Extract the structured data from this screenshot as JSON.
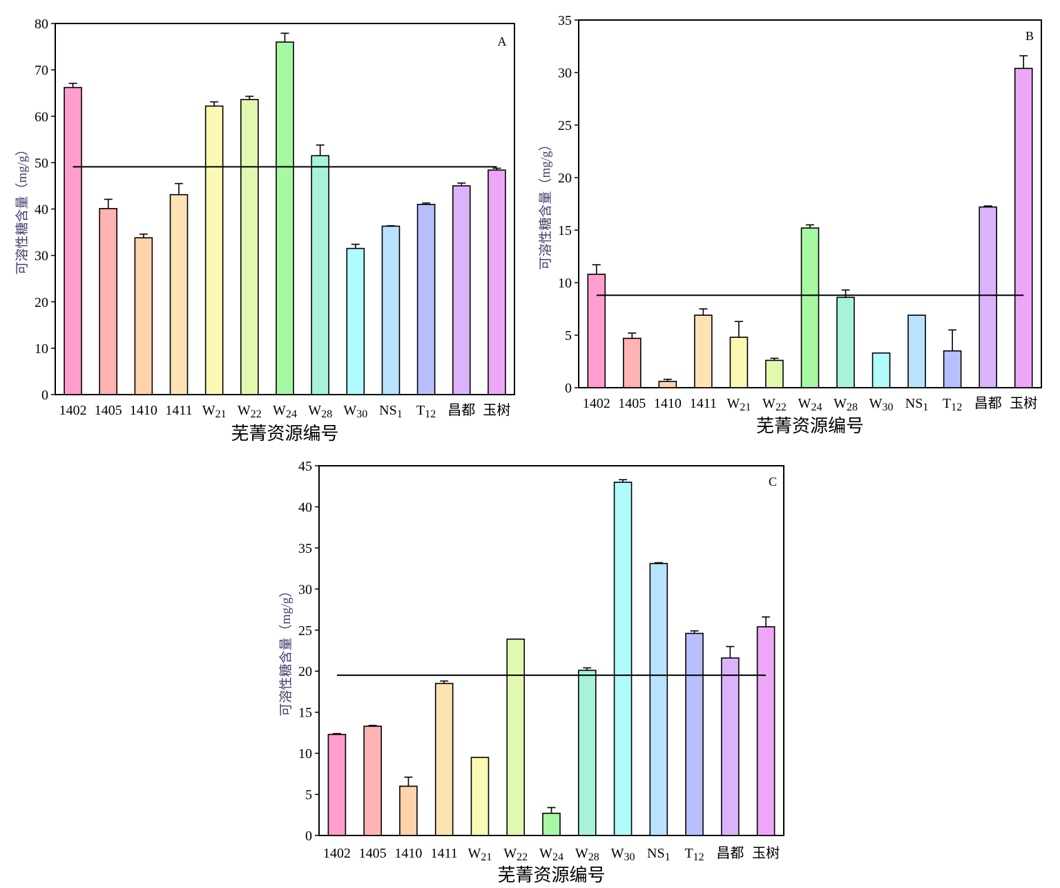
{
  "chart_data": [
    {
      "type": "bar",
      "panel_label": "A",
      "ylabel": "可溶性糖含量（mg/g）",
      "xlabel": "芜菁资源编号",
      "ylim": [
        0,
        80
      ],
      "yticks": [
        0,
        10,
        20,
        30,
        40,
        50,
        60,
        70,
        80
      ],
      "categories": [
        {
          "main": "1402",
          "sub": ""
        },
        {
          "main": "1405",
          "sub": ""
        },
        {
          "main": "1410",
          "sub": ""
        },
        {
          "main": "1411",
          "sub": ""
        },
        {
          "main": "W",
          "sub": "21"
        },
        {
          "main": "W",
          "sub": "22"
        },
        {
          "main": "W",
          "sub": "24"
        },
        {
          "main": "W",
          "sub": "28"
        },
        {
          "main": "W",
          "sub": "30"
        },
        {
          "main": "NS",
          "sub": "1"
        },
        {
          "main": "T",
          "sub": "12"
        },
        {
          "main": "昌都",
          "sub": ""
        },
        {
          "main": "玉树",
          "sub": ""
        }
      ],
      "values": [
        66.2,
        40.1,
        33.8,
        43.1,
        62.2,
        63.6,
        76.0,
        51.5,
        31.5,
        36.3,
        41.0,
        45.0,
        48.4
      ],
      "errors": [
        0.9,
        2.0,
        0.8,
        2.4,
        0.9,
        0.7,
        1.9,
        2.3,
        0.9,
        0.1,
        0.3,
        0.6,
        0.4
      ],
      "mean_line": 49.1,
      "grid": false
    },
    {
      "type": "bar",
      "panel_label": "B",
      "ylabel": "可溶性糖含量（mg/g）",
      "xlabel": "芜菁资源编号",
      "ylim": [
        0,
        35
      ],
      "yticks": [
        0,
        5,
        10,
        15,
        20,
        25,
        30,
        35
      ],
      "categories": [
        {
          "main": "1402",
          "sub": ""
        },
        {
          "main": "1405",
          "sub": ""
        },
        {
          "main": "1410",
          "sub": ""
        },
        {
          "main": "1411",
          "sub": ""
        },
        {
          "main": "W",
          "sub": "21"
        },
        {
          "main": "W",
          "sub": "22"
        },
        {
          "main": "W",
          "sub": "24"
        },
        {
          "main": "W",
          "sub": "28"
        },
        {
          "main": "W",
          "sub": "30"
        },
        {
          "main": "NS",
          "sub": "1"
        },
        {
          "main": "T",
          "sub": "12"
        },
        {
          "main": "昌都",
          "sub": ""
        },
        {
          "main": "玉树",
          "sub": ""
        }
      ],
      "values": [
        10.8,
        4.7,
        0.6,
        6.9,
        4.8,
        2.6,
        15.2,
        8.6,
        3.3,
        6.9,
        3.5,
        17.2,
        30.4
      ],
      "errors": [
        0.9,
        0.5,
        0.2,
        0.6,
        1.5,
        0.2,
        0.3,
        0.7,
        0.0,
        0.0,
        2.0,
        0.1,
        1.2
      ],
      "mean_line": 8.8,
      "grid": false
    },
    {
      "type": "bar",
      "panel_label": "C",
      "ylabel": "可溶性糖含量（mg/g）",
      "xlabel": "芜菁资源编号",
      "ylim": [
        0,
        45
      ],
      "yticks": [
        0,
        5,
        10,
        15,
        20,
        25,
        30,
        35,
        40,
        45
      ],
      "categories": [
        {
          "main": "1402",
          "sub": ""
        },
        {
          "main": "1405",
          "sub": ""
        },
        {
          "main": "1410",
          "sub": ""
        },
        {
          "main": "1411",
          "sub": ""
        },
        {
          "main": "W",
          "sub": "21"
        },
        {
          "main": "W",
          "sub": "22"
        },
        {
          "main": "W",
          "sub": "24"
        },
        {
          "main": "W",
          "sub": "28"
        },
        {
          "main": "W",
          "sub": "30"
        },
        {
          "main": "NS",
          "sub": "1"
        },
        {
          "main": "T",
          "sub": "12"
        },
        {
          "main": "昌都",
          "sub": ""
        },
        {
          "main": "玉树",
          "sub": ""
        }
      ],
      "values": [
        12.3,
        13.3,
        6.0,
        18.5,
        9.5,
        23.9,
        2.7,
        20.1,
        43.0,
        33.1,
        24.6,
        21.6,
        25.4
      ],
      "errors": [
        0.1,
        0.1,
        1.1,
        0.3,
        0.0,
        0.0,
        0.7,
        0.3,
        0.3,
        0.1,
        0.3,
        1.4,
        1.2
      ],
      "mean_line": 19.5,
      "grid": false
    }
  ],
  "bar_colors": [
    "#ff9ecf",
    "#ffb3b3",
    "#ffd3ac",
    "#fde3b4",
    "#fbf8b4",
    "#e3f8af",
    "#a8f7a3",
    "#a8f2dc",
    "#b0fbfb",
    "#b8e2fd",
    "#b8bffd",
    "#dbb3fb",
    "#eda7f7"
  ]
}
